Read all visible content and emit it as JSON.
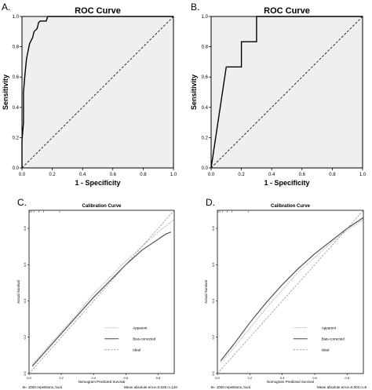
{
  "chart_data": [
    {
      "panel": "A.",
      "type": "line",
      "title": "ROC Curve",
      "xlabel": "1 - Specificity",
      "ylabel": "Sensitivity",
      "xlim": [
        0,
        1
      ],
      "ylim": [
        0,
        1
      ],
      "xticks": [
        "0.0",
        "0.2",
        "0.4",
        "0.6",
        "0.8",
        "1.0"
      ],
      "yticks": [
        "0.0",
        "0.2",
        "0.4",
        "0.6",
        "0.8",
        "1.0"
      ],
      "series": [
        {
          "x": [
            0,
            0,
            0.01,
            0.01,
            0.02,
            0.03,
            0.05,
            0.07,
            0.08,
            0.1,
            0.11,
            0.12,
            0.16,
            0.17,
            0.2,
            1
          ],
          "y": [
            0,
            0.18,
            0.3,
            0.5,
            0.62,
            0.72,
            0.82,
            0.86,
            0.9,
            0.92,
            0.96,
            0.97,
            0.97,
            1,
            1,
            1
          ]
        },
        {
          "x": [
            0,
            1
          ],
          "y": [
            0,
            1
          ],
          "style": "dashed"
        }
      ]
    },
    {
      "panel": "B.",
      "type": "line",
      "title": "ROC Curve",
      "xlabel": "1 - Specificity",
      "ylabel": "Sensitivity",
      "xlim": [
        0,
        1
      ],
      "ylim": [
        0,
        1
      ],
      "xticks": [
        "0.0",
        "0.2",
        "0.4",
        "0.6",
        "0.8",
        "1.0"
      ],
      "yticks": [
        "0.0",
        "0.2",
        "0.4",
        "0.6",
        "0.8",
        "1.0"
      ],
      "series": [
        {
          "x": [
            0,
            0.1,
            0.2,
            0.2,
            0.3,
            0.3,
            1
          ],
          "y": [
            0,
            0.667,
            0.667,
            0.833,
            0.833,
            1,
            1
          ]
        },
        {
          "x": [
            0,
            1
          ],
          "y": [
            0,
            1
          ],
          "style": "dashed"
        }
      ]
    },
    {
      "panel": "C.",
      "type": "line",
      "title": "Calibration Curve",
      "xlabel": "Nomogram Predicted Survival",
      "ylabel": "Actual Survival",
      "xlim": [
        0,
        0.9
      ],
      "ylim": [
        0,
        0.9
      ],
      "xticks": [
        "0.0",
        "0.2",
        "0.4",
        "0.6",
        "0.8"
      ],
      "yticks": [
        "0.0",
        "0.2",
        "0.4",
        "0.6",
        "0.8"
      ],
      "legend": [
        "Apparent",
        "Bias-corrected",
        "Ideal"
      ],
      "footnote_left": "B= 1000 repetitions, boot",
      "footnote_right": "Mean absolute error=0.025 n=120",
      "series": [
        {
          "name": "Apparent",
          "style": "dotted",
          "x": [
            0.02,
            0.1,
            0.2,
            0.3,
            0.4,
            0.5,
            0.6,
            0.7,
            0.8,
            0.9
          ],
          "y": [
            0.05,
            0.13,
            0.23,
            0.33,
            0.44,
            0.53,
            0.62,
            0.7,
            0.78,
            0.85
          ]
        },
        {
          "name": "Bias-corrected",
          "style": "solid",
          "x": [
            0.02,
            0.1,
            0.2,
            0.3,
            0.4,
            0.5,
            0.6,
            0.7,
            0.8,
            0.85,
            0.88
          ],
          "y": [
            0.04,
            0.12,
            0.22,
            0.32,
            0.42,
            0.51,
            0.6,
            0.68,
            0.74,
            0.77,
            0.78
          ]
        },
        {
          "name": "Ideal",
          "style": "dashed",
          "x": [
            0,
            0.9
          ],
          "y": [
            0,
            0.9
          ]
        }
      ]
    },
    {
      "panel": "D.",
      "type": "line",
      "title": "Calibration Curve",
      "xlabel": "Nomogram Predicted Survival",
      "ylabel": "Actual Survival",
      "xlim": [
        0,
        0.9
      ],
      "ylim": [
        0,
        0.9
      ],
      "xticks": [
        "0.0",
        "0.2",
        "0.4",
        "0.6",
        "0.8"
      ],
      "yticks": [
        "0.0",
        "0.2",
        "0.4",
        "0.6",
        "0.8"
      ],
      "legend": [
        "Apparent",
        "Bias-corrected",
        "Ideal"
      ],
      "footnote_left": "B= 1000 repetitions, boot",
      "footnote_right": "Mean absolute error=0.003 n=8",
      "series": [
        {
          "name": "Apparent",
          "style": "dotted",
          "x": [
            0.02,
            0.1,
            0.2,
            0.3,
            0.4,
            0.5,
            0.6,
            0.7,
            0.8,
            0.9
          ],
          "y": [
            0.06,
            0.14,
            0.25,
            0.36,
            0.46,
            0.56,
            0.64,
            0.72,
            0.79,
            0.85
          ]
        },
        {
          "name": "Bias-corrected",
          "style": "solid",
          "x": [
            0.02,
            0.1,
            0.2,
            0.3,
            0.4,
            0.5,
            0.6,
            0.7,
            0.8,
            0.9
          ],
          "y": [
            0.07,
            0.16,
            0.28,
            0.39,
            0.49,
            0.58,
            0.66,
            0.73,
            0.8,
            0.86
          ]
        },
        {
          "name": "Ideal",
          "style": "dashed",
          "x": [
            0,
            0.9
          ],
          "y": [
            0,
            0.9
          ]
        }
      ]
    }
  ]
}
